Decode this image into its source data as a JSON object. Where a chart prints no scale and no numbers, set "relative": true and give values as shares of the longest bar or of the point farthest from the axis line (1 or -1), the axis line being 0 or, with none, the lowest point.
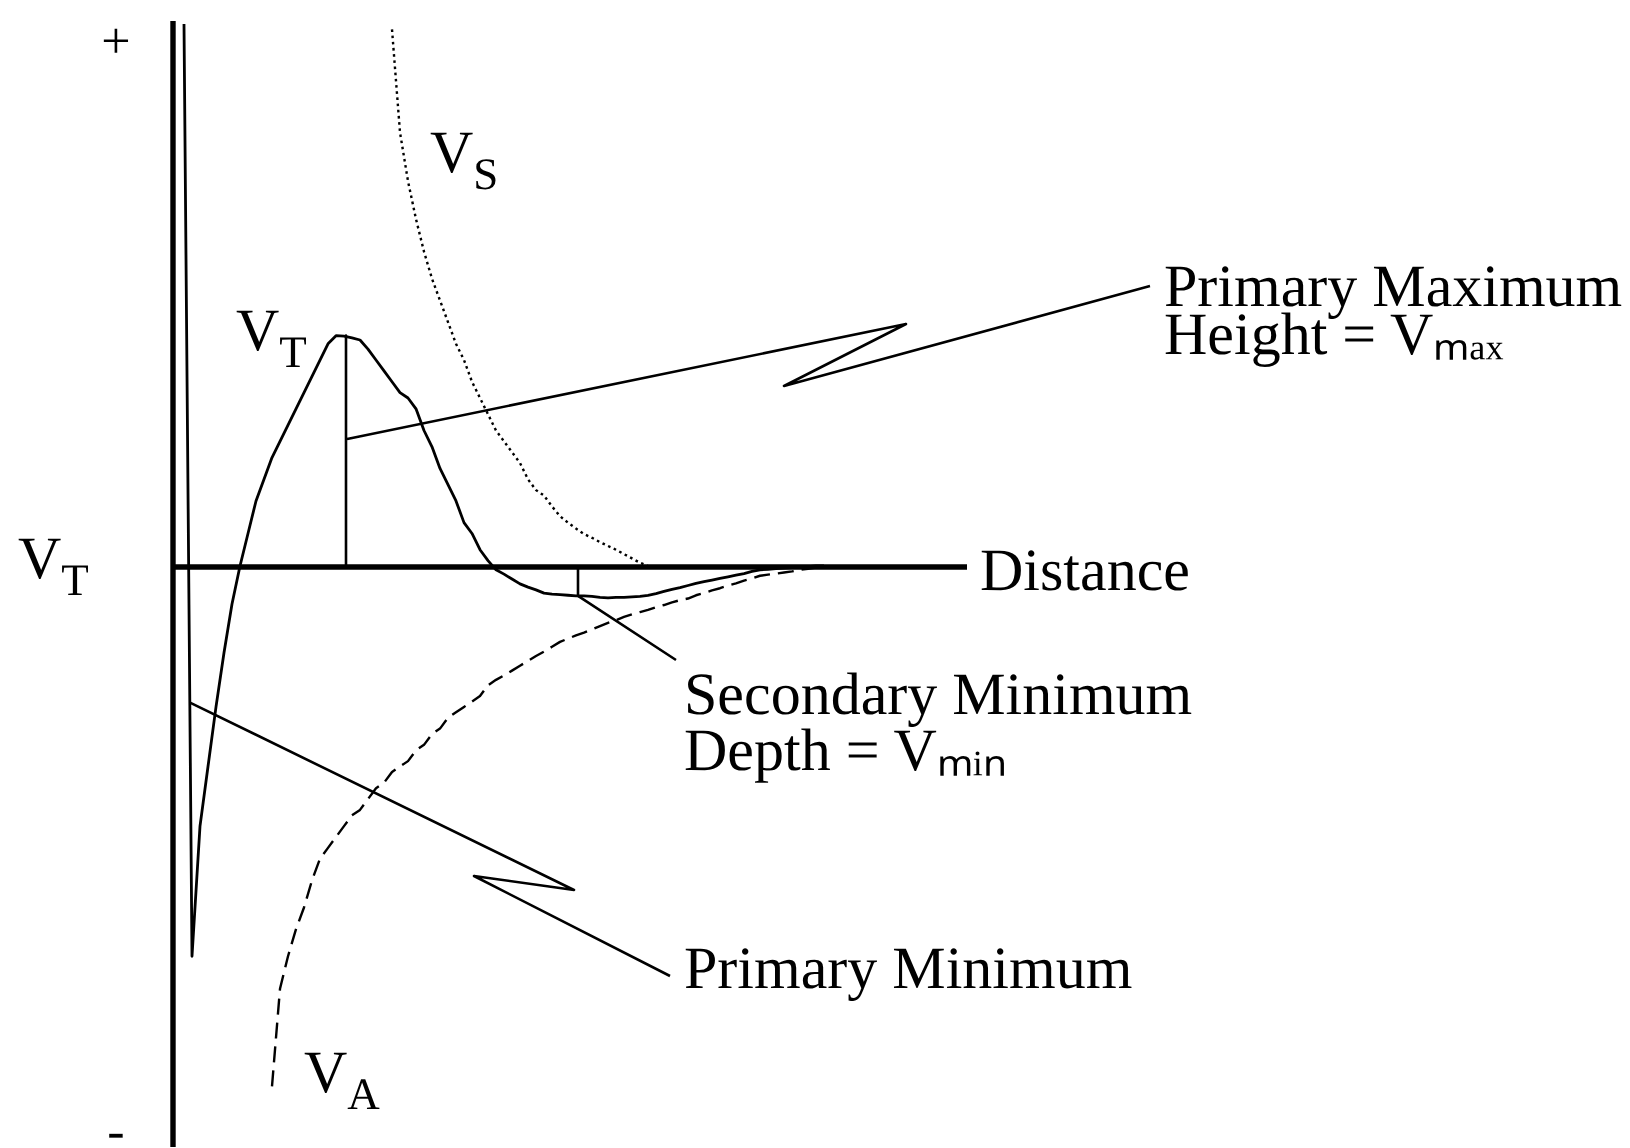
{
  "chart_data": {
    "type": "line",
    "relative": true,
    "tick_labels": false,
    "ylabel": "V$_{T}$",
    "xlabel": "Distance",
    "categories": [
      null,
      null,
      null,
      null,
      null,
      null,
      null,
      null,
      null,
      null,
      null,
      null,
      null,
      null,
      null,
      null,
      null,
      null,
      null,
      null,
      null,
      null,
      null,
      null,
      null,
      null,
      null,
      null,
      null,
      null,
      null,
      null,
      null,
      null,
      null,
      null,
      null,
      null,
      null,
      null,
      null,
      null,
      null,
      null,
      null,
      null,
      null,
      null,
      null,
      null,
      null,
      null,
      null,
      null,
      null,
      null,
      null,
      null,
      null,
      null,
      null,
      null,
      null,
      null,
      null,
      null,
      null,
      null,
      null,
      null,
      null,
      null,
      null,
      null,
      null,
      null,
      null,
      null,
      null,
      null,
      null
    ],
    "series": [
      {
        "name": "V$_{T}$",
        "color": "#000000",
        "line_style": "solid",
        "values": [
          1.0,
          -0.72,
          -0.48,
          -0.37,
          -0.26,
          -0.16,
          -0.07,
          0.0,
          0.06,
          0.12,
          0.16,
          0.2,
          0.23,
          0.26,
          0.29,
          0.32,
          0.35,
          0.38,
          0.41,
          0.425,
          0.424,
          0.421,
          0.417,
          0.4,
          0.38,
          0.36,
          0.34,
          0.32,
          0.31,
          0.29,
          0.25,
          0.22,
          0.18,
          0.15,
          0.12,
          0.08,
          0.06,
          0.03,
          0.01,
          -0.007,
          -0.015,
          -0.024,
          -0.033,
          -0.039,
          -0.044,
          -0.05,
          -0.052,
          -0.053,
          -0.054,
          -0.055,
          -0.055,
          -0.056,
          -0.058,
          -0.059,
          -0.058,
          -0.058,
          -0.057,
          -0.056,
          -0.054,
          -0.051,
          -0.047,
          -0.043,
          -0.04,
          -0.036,
          -0.032,
          -0.029,
          -0.026,
          -0.023,
          -0.02,
          -0.017,
          -0.014,
          -0.01,
          -0.007,
          -0.006,
          -0.005,
          -0.004,
          -0.003,
          -0.002,
          -0.001,
          0.0,
          0.0
        ]
      },
      {
        "name": "V$_{S}$",
        "color": "#000000",
        "line_style": "dotted",
        "values": [
          null,
          null,
          null,
          null,
          null,
          null,
          null,
          null,
          null,
          null,
          null,
          null,
          null,
          null,
          null,
          null,
          null,
          null,
          null,
          null,
          null,
          null,
          null,
          null,
          null,
          null,
          0.99,
          0.8,
          0.71,
          0.64,
          0.58,
          0.53,
          0.49,
          0.45,
          0.41,
          0.38,
          0.34,
          0.31,
          0.28,
          0.25,
          0.23,
          0.21,
          0.19,
          0.16,
          0.14,
          0.13,
          0.11,
          0.092,
          0.08,
          0.069,
          0.059,
          0.052,
          0.044,
          0.037,
          0.03,
          0.022,
          0.014,
          0.006,
          0.0,
          null,
          null,
          null,
          null,
          null,
          null,
          null,
          null,
          null,
          null,
          null,
          null,
          null,
          null,
          null,
          null,
          null,
          null,
          null,
          null,
          null,
          null
        ]
      },
      {
        "name": "V$_{A}$",
        "color": "#000000",
        "line_style": "dashed",
        "values": [
          null,
          null,
          null,
          null,
          null,
          null,
          null,
          null,
          null,
          null,
          null,
          -0.96,
          -0.78,
          -0.72,
          -0.67,
          -0.63,
          -0.58,
          -0.54,
          -0.52,
          -0.5,
          -0.48,
          -0.46,
          -0.45,
          -0.43,
          -0.41,
          -0.4,
          -0.38,
          -0.37,
          -0.36,
          -0.34,
          -0.33,
          -0.31,
          -0.3,
          -0.28,
          -0.27,
          -0.26,
          -0.25,
          -0.24,
          -0.22,
          -0.21,
          -0.202,
          -0.193,
          -0.184,
          -0.175,
          -0.166,
          -0.158,
          -0.149,
          -0.14,
          -0.134,
          -0.128,
          -0.123,
          -0.117,
          -0.111,
          -0.105,
          -0.1,
          -0.094,
          -0.089,
          -0.085,
          -0.081,
          -0.076,
          -0.072,
          -0.067,
          -0.063,
          -0.06,
          -0.054,
          -0.05,
          -0.045,
          -0.041,
          -0.036,
          -0.032,
          -0.027,
          -0.023,
          -0.018,
          -0.016,
          -0.014,
          -0.012,
          -0.01,
          -0.007,
          -0.005,
          -0.003,
          -0.001
        ]
      }
    ],
    "annotations": [
      "Primary Maximum\nHeight = Vₘₐₓ",
      "Secondary Minimum\nDepth = Vₘᵢₙ",
      "Primary Minimum",
      "+",
      "-"
    ]
  }
}
